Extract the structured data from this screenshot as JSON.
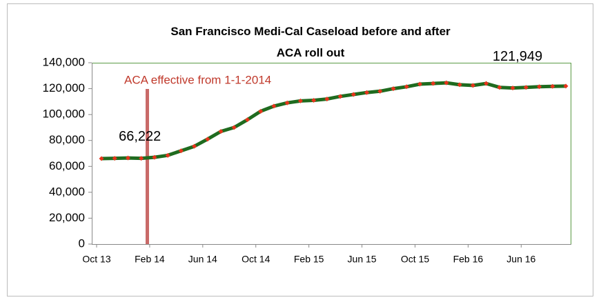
{
  "chart_data": {
    "type": "line",
    "title": "San Francisco Medi-Cal Caseload before and after ACA roll out",
    "annotations": [
      "ACA effective from 1-1-2014"
    ],
    "categories": [
      "Oct 13",
      null,
      null,
      null,
      "Feb 14",
      null,
      null,
      null,
      "Jun 14",
      null,
      null,
      null,
      "Oct 14",
      null,
      null,
      null,
      "Feb 15",
      null,
      null,
      null,
      "Jun 15",
      null,
      null,
      null,
      "Oct 15",
      null,
      null,
      null,
      "Feb 16",
      null,
      null,
      null,
      "Jun 16",
      null,
      null,
      null
    ],
    "series": [
      {
        "name": "Medi-Cal Caseload",
        "color": "#1f6b1f",
        "marker_color": "#e8341c",
        "values": [
          66000,
          66200,
          66500,
          66222,
          67000,
          68500,
          72000,
          75500,
          81000,
          87000,
          90000,
          96000,
          102500,
          106500,
          109000,
          110500,
          111000,
          112000,
          114000,
          115500,
          117000,
          118000,
          120000,
          121500,
          123500,
          124000,
          124500,
          123000,
          122500,
          124000,
          121000,
          120500,
          121000,
          121500,
          121800,
          121949
        ],
        "value_labels": [
          null,
          null,
          null,
          "66,222",
          null,
          null,
          null,
          null,
          null,
          null,
          null,
          null,
          null,
          null,
          null,
          null,
          null,
          null,
          null,
          null,
          null,
          null,
          null,
          null,
          null,
          null,
          null,
          null,
          null,
          null,
          null,
          null,
          null,
          null,
          null,
          "121,949"
        ]
      }
    ],
    "ylim": [
      0,
      140000
    ],
    "yticks": [
      0,
      {
        "value": 20000,
        "label": "20,000"
      },
      {
        "value": 40000,
        "label": "40,000"
      },
      {
        "value": 60000,
        "label": "60,000"
      },
      {
        "value": 80000,
        "label": "80,000"
      },
      {
        "value": 100000,
        "label": "100,000"
      },
      {
        "value": 120000,
        "label": "120,000"
      },
      {
        "value": 140000,
        "label": "140,000"
      }
    ],
    "grid": false
  }
}
